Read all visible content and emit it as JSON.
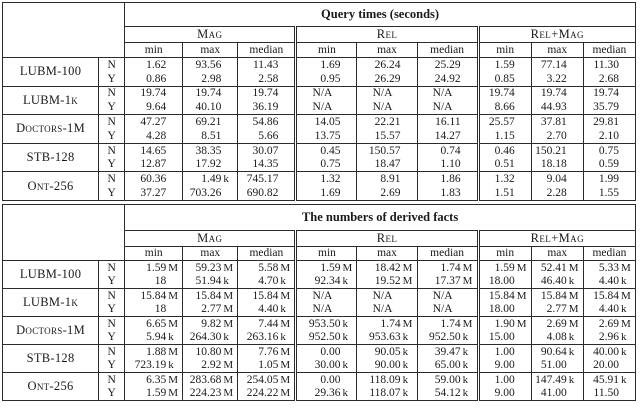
{
  "tables": [
    {
      "title": "Query times (seconds)",
      "groups": [
        "Mag",
        "Rel",
        "Rel+Mag"
      ],
      "subheaders": [
        "min",
        "max",
        "median"
      ],
      "flag_values": [
        "N",
        "Y"
      ],
      "row_groups": [
        {
          "label": "LUBM-100",
          "rows": [
            {
              "flag": "N",
              "cells": [
                "1.62",
                "93.56",
                "11.43",
                "1.69",
                "26.24",
                "25.29",
                "1.59",
                "77.14",
                "11.30"
              ]
            },
            {
              "flag": "Y",
              "cells": [
                "0.86",
                "2.98",
                "2.58",
                "0.95",
                "26.29",
                "24.92",
                "0.85",
                "3.22",
                "2.68"
              ]
            }
          ]
        },
        {
          "label": "LUBM-1k",
          "rows": [
            {
              "flag": "N",
              "cells": [
                "19.74",
                "19.74",
                "19.74",
                "N/A",
                "N/A",
                "N/A",
                "19.74",
                "19.74",
                "19.74"
              ]
            },
            {
              "flag": "Y",
              "cells": [
                "9.64",
                "40.10",
                "36.19",
                "N/A",
                "N/A",
                "N/A",
                "8.66",
                "44.93",
                "35.79"
              ]
            }
          ]
        },
        {
          "label": "Doctors-1M",
          "rows": [
            {
              "flag": "N",
              "cells": [
                "47.27",
                "69.21",
                "54.86",
                "14.05",
                "22.21",
                "16.11",
                "25.57",
                "37.81",
                "29.81"
              ]
            },
            {
              "flag": "Y",
              "cells": [
                "4.28",
                "8.51",
                "5.66",
                "13.75",
                "15.57",
                "14.27",
                "1.15",
                "2.70",
                "2.10"
              ]
            }
          ]
        },
        {
          "label": "STB-128",
          "rows": [
            {
              "flag": "N",
              "cells": [
                "14.65",
                "38.35",
                "30.07",
                "0.45",
                "150.57",
                "0.74",
                "0.46",
                "150.21",
                "0.75"
              ]
            },
            {
              "flag": "Y",
              "cells": [
                "12.87",
                "17.92",
                "14.35",
                "0.75",
                "18.47",
                "1.10",
                "0.51",
                "18.18",
                "0.59"
              ]
            }
          ]
        },
        {
          "label": "Ont-256",
          "rows": [
            {
              "flag": "N",
              "cells": [
                "60.36",
                "1.49 k",
                "745.17",
                "1.32",
                "8.91",
                "1.86",
                "1.32",
                "9.04",
                "1.99"
              ]
            },
            {
              "flag": "Y",
              "cells": [
                "37.27",
                "703.26",
                "690.82",
                "1.69",
                "2.69",
                "1.83",
                "1.51",
                "2.28",
                "1.55"
              ]
            }
          ]
        }
      ]
    },
    {
      "title": "The numbers of derived facts",
      "groups": [
        "Mag",
        "Rel",
        "Rel+Mag"
      ],
      "subheaders": [
        "min",
        "max",
        "median"
      ],
      "flag_values": [
        "N",
        "Y"
      ],
      "row_groups": [
        {
          "label": "LUBM-100",
          "rows": [
            {
              "flag": "N",
              "cells": [
                "1.59 M",
                "59.23 M",
                "5.58 M",
                "1.59 M",
                "18.42 M",
                "1.74 M",
                "1.59 M",
                "52.41 M",
                "5.33 M"
              ]
            },
            {
              "flag": "Y",
              "cells": [
                "18",
                "51.94 k",
                "4.70 k",
                "92.34 k",
                "19.52 M",
                "17.37 M",
                "18.00",
                "46.40 k",
                "4.40 k"
              ]
            }
          ]
        },
        {
          "label": "LUBM-1k",
          "rows": [
            {
              "flag": "N",
              "cells": [
                "15.84 M",
                "15.84 M",
                "15.84 M",
                "N/A",
                "N/A",
                "N/A",
                "15.84 M",
                "15.84 M",
                "15.84 M"
              ]
            },
            {
              "flag": "Y",
              "cells": [
                "18",
                "2.77 M",
                "4.40 k",
                "N/A",
                "N/A",
                "N/A",
                "18.00",
                "2.77 M",
                "4.40 k"
              ]
            }
          ]
        },
        {
          "label": "Doctors-1M",
          "rows": [
            {
              "flag": "N",
              "cells": [
                "6.65 M",
                "9.82 M",
                "7.44 M",
                "953.50 k",
                "1.74 M",
                "1.74 M",
                "1.90 M",
                "2.69 M",
                "2.69 M"
              ]
            },
            {
              "flag": "Y",
              "cells": [
                "5.94 k",
                "264.30 k",
                "263.16 k",
                "952.50 k",
                "953.63 k",
                "952.50 k",
                "15.00",
                "4.08 k",
                "2.96 k"
              ]
            }
          ]
        },
        {
          "label": "STB-128",
          "rows": [
            {
              "flag": "N",
              "cells": [
                "1.88 M",
                "10.80 M",
                "7.76 M",
                "0.00",
                "90.05 k",
                "39.47 k",
                "1.00",
                "90.64 k",
                "40.00 k"
              ]
            },
            {
              "flag": "Y",
              "cells": [
                "723.19 k",
                "2.92 M",
                "1.05 M",
                "30.00 k",
                "90.00 k",
                "65.00 k",
                "9.00",
                "51.00",
                "20.00"
              ]
            }
          ]
        },
        {
          "label": "Ont-256",
          "rows": [
            {
              "flag": "N",
              "cells": [
                "6.35 M",
                "283.68 M",
                "254.05 M",
                "0.00",
                "118.09 k",
                "59.00 k",
                "1.00",
                "147.49 k",
                "45.91 k"
              ]
            },
            {
              "flag": "Y",
              "cells": [
                "1.59 M",
                "224.23 M",
                "224.22 M",
                "29.36 k",
                "118.07 k",
                "54.12 k",
                "9.00",
                "41.00",
                "11.50"
              ]
            }
          ]
        }
      ]
    }
  ]
}
